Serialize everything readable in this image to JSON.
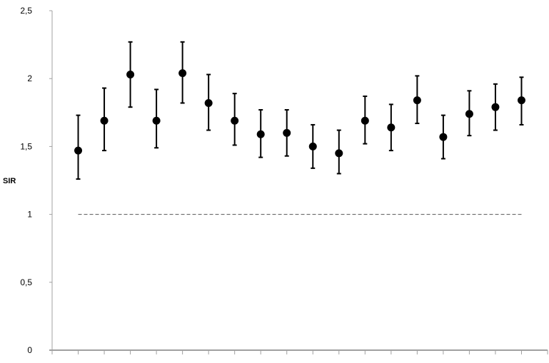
{
  "chart_data": {
    "type": "scatter",
    "title": "",
    "xlabel": "",
    "ylabel": "SIR",
    "ylim": [
      0,
      2.5
    ],
    "yticks": [
      "0",
      "0,5",
      "1",
      "1,5",
      "2",
      "2,5"
    ],
    "ytick_values": [
      0,
      0.5,
      1,
      1.5,
      2,
      2.5
    ],
    "grid": false,
    "reference_line": {
      "y": 1,
      "style": "dashed"
    },
    "x": [
      1,
      2,
      3,
      4,
      5,
      6,
      7,
      8,
      9,
      10,
      11,
      12,
      13,
      14,
      15,
      16,
      17,
      18
    ],
    "values": [
      1.47,
      1.69,
      2.03,
      1.69,
      2.04,
      1.82,
      1.69,
      1.59,
      1.6,
      1.5,
      1.45,
      1.69,
      1.64,
      1.84,
      1.57,
      1.74,
      1.79,
      1.84
    ],
    "lower": [
      1.26,
      1.47,
      1.79,
      1.49,
      1.82,
      1.62,
      1.51,
      1.42,
      1.43,
      1.34,
      1.3,
      1.52,
      1.47,
      1.67,
      1.41,
      1.58,
      1.62,
      1.66
    ],
    "upper": [
      1.73,
      1.93,
      2.27,
      1.92,
      2.27,
      2.03,
      1.89,
      1.77,
      1.77,
      1.66,
      1.62,
      1.87,
      1.81,
      2.02,
      1.73,
      1.91,
      1.96,
      2.01
    ],
    "marker_color": "#000000",
    "axis_color": "#a0a0a0"
  }
}
